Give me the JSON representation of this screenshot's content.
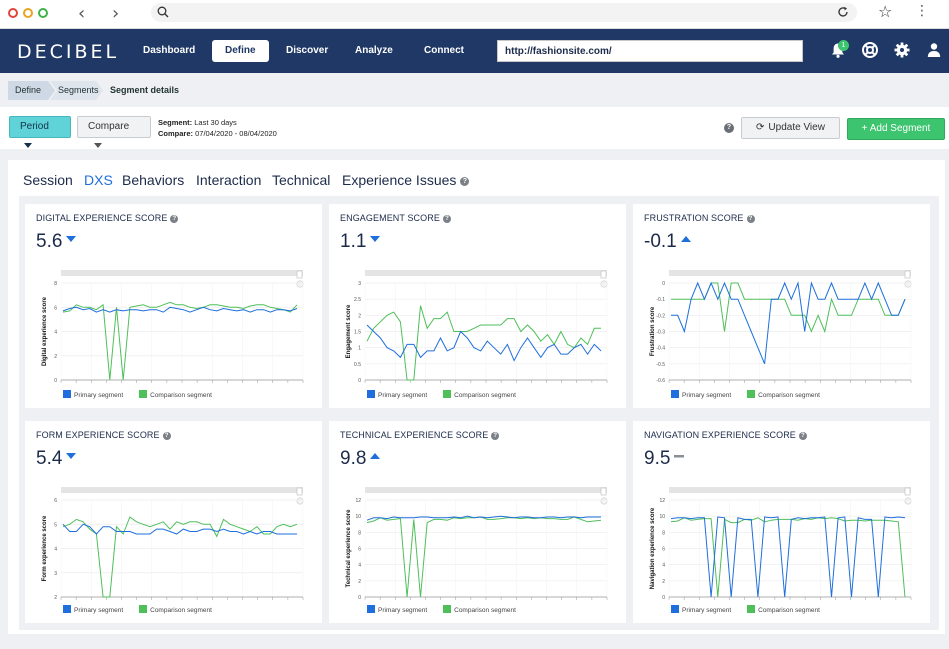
{
  "browser": {
    "colors": {
      "close": "#e0463a",
      "minimize": "#e8a524",
      "maximize": "#3fb24a"
    }
  },
  "app": {
    "logo": "DECIBEL",
    "nav": [
      "Dashboard",
      "Define",
      "Discover",
      "Analyze",
      "Connect"
    ],
    "active_nav": "Define",
    "site_url": "http://fashionsite.com/",
    "notification_count": "1",
    "colors": {
      "nav_bg": "#1f3866",
      "accent_blue": "#1e6fdc",
      "green": "#3cc46e",
      "teal": "#5fd3d8"
    }
  },
  "breadcrumb": [
    "Define",
    "Segments",
    "Segment details"
  ],
  "toolbar": {
    "period_label": "Period",
    "compare_label": "Compare",
    "segment_key": "Segment:",
    "segment_value": "Last 30 days",
    "compare_key": "Compare:",
    "compare_value": "07/04/2020 - 08/04/2020",
    "update_label": "Update View",
    "add_label": "+ Add Segment"
  },
  "tabs": [
    "Session",
    "DXS",
    "Behaviors",
    "Interaction",
    "Technical",
    "Experience Issues"
  ],
  "active_tab": "DXS",
  "legend": {
    "primary": "Primary segment",
    "comparison": "Comparison segment"
  },
  "cards": [
    {
      "title": "DIGITAL EXPERIENCE SCORE",
      "score": "5.6",
      "trend": "down",
      "chart_data": {
        "type": "line",
        "ylabel": "Digital experience score",
        "ylim": [
          0,
          8
        ],
        "yticks": [
          "0",
          "2",
          "4",
          "6",
          "8"
        ],
        "series": [
          {
            "name": "Primary segment",
            "values": [
              5.7,
              5.9,
              6.0,
              5.8,
              5.9,
              5.6,
              5.8,
              5.6,
              5.8,
              5.7,
              5.8,
              5.8,
              5.7,
              5.8,
              5.8,
              5.6,
              6.0,
              5.9,
              5.8,
              5.6,
              5.8,
              6.0,
              5.8,
              5.7,
              5.9,
              5.8,
              5.7,
              5.8,
              5.6,
              5.8,
              5.8,
              5.6,
              5.8,
              5.8,
              5.7,
              5.9
            ]
          },
          {
            "name": "Comparison segment",
            "values": [
              5.6,
              5.7,
              6.2,
              6.0,
              6.0,
              5.8,
              6.2,
              0,
              6.0,
              0,
              6.0,
              6.1,
              6.2,
              6.0,
              6.0,
              6.2,
              6.4,
              6.2,
              6.2,
              6.0,
              5.9,
              6.0,
              6.2,
              6.2,
              6.1,
              6.0,
              6.0,
              5.9,
              6.1,
              6.2,
              6.2,
              6.0,
              5.9,
              5.8,
              5.6,
              6.2
            ]
          }
        ]
      }
    },
    {
      "title": "ENGAGEMENT SCORE",
      "score": "1.1",
      "trend": "down",
      "chart_data": {
        "type": "line",
        "ylabel": "Engagement score",
        "ylim": [
          0,
          3
        ],
        "yticks": [
          "0",
          "0.5",
          "1",
          "1.5",
          "2",
          "2.5",
          "3"
        ],
        "series": [
          {
            "name": "Primary segment",
            "values": [
              1.7,
              1.5,
              1.3,
              1.0,
              0.9,
              0.7,
              1.1,
              1.1,
              0.7,
              0.9,
              0.9,
              1.3,
              0.9,
              1.0,
              1.5,
              1.3,
              1.0,
              0.9,
              1.2,
              1.0,
              0.8,
              1.1,
              0.6,
              1.0,
              1.3,
              1.0,
              0.7,
              1.0,
              1.1,
              0.8,
              0.8,
              1.0,
              1.1,
              0.8,
              1.1,
              0.9
            ]
          },
          {
            "name": "Comparison segment",
            "values": [
              1.2,
              1.6,
              1.8,
              2.0,
              2.1,
              1.8,
              0,
              0,
              2.3,
              1.6,
              1.9,
              1.9,
              2.1,
              1.5,
              1.5,
              1.5,
              1.6,
              1.7,
              1.7,
              1.7,
              1.7,
              1.9,
              1.9,
              1.5,
              1.7,
              1.5,
              1.2,
              1.4,
              1.1,
              1.5,
              1.1,
              1.0,
              1.3,
              1.1,
              1.6,
              1.6
            ]
          }
        ]
      }
    },
    {
      "title": "FRUSTRATION SCORE",
      "score": "-0.1",
      "trend": "up",
      "chart_data": {
        "type": "line",
        "ylabel": "Frustration score",
        "ylim": [
          -0.6,
          0
        ],
        "yticks": [
          "-0.6",
          "-0.5",
          "-0.4",
          "-0.3",
          "-0.2",
          "-0.1",
          "0"
        ],
        "series": [
          {
            "name": "Primary segment",
            "values": [
              -0.2,
              -0.2,
              -0.3,
              -0.1,
              0,
              -0.1,
              0,
              -0.1,
              0,
              -0.1,
              -0.1,
              -0.2,
              -0.3,
              -0.4,
              -0.5,
              -0.1,
              -0.1,
              0,
              -0.1,
              0,
              -0.3,
              0,
              -0.1,
              -0.1,
              0,
              -0.1,
              -0.1,
              -0.1,
              -0.1,
              0,
              -0.1,
              0,
              -0.1,
              -0.2,
              -0.2,
              -0.1
            ]
          },
          {
            "name": "Comparison segment",
            "values": [
              -0.1,
              -0.1,
              -0.1,
              -0.1,
              -0.1,
              -0.1,
              0,
              0,
              -0.3,
              0,
              0,
              -0.1,
              -0.1,
              -0.1,
              -0.1,
              -0.1,
              -0.1,
              -0.1,
              -0.2,
              -0.2,
              -0.2,
              -0.3,
              -0.2,
              -0.3,
              -0.1,
              -0.2,
              -0.2,
              -0.2,
              -0.1,
              -0.1,
              -0.1,
              -0.1,
              -0.2,
              -0.2,
              -0.2,
              -0.1
            ]
          }
        ]
      }
    },
    {
      "title": "FORM EXPERIENCE SCORE",
      "score": "5.4",
      "trend": "down",
      "chart_data": {
        "type": "line",
        "ylabel": "Form experience score",
        "ylim": [
          2,
          6
        ],
        "yticks": [
          "2",
          "3",
          "4",
          "5",
          "6"
        ],
        "series": [
          {
            "name": "Primary segment",
            "values": [
              5.0,
              4.7,
              4.7,
              5.0,
              4.9,
              4.6,
              4.9,
              4.9,
              4.7,
              4.7,
              4.7,
              4.6,
              4.6,
              4.6,
              4.8,
              4.8,
              4.7,
              4.6,
              4.8,
              4.7,
              4.7,
              4.8,
              4.8,
              4.7,
              4.8,
              4.7,
              4.7,
              4.6,
              4.7,
              4.6,
              4.7,
              4.7,
              4.6,
              4.6,
              4.6,
              4.6
            ]
          },
          {
            "name": "Comparison segment",
            "values": [
              4.9,
              5.0,
              5.2,
              5.1,
              4.8,
              4.6,
              2,
              2,
              4.9,
              4.6,
              5.3,
              5.1,
              5.0,
              4.9,
              5.0,
              5.1,
              4.8,
              5.1,
              5.0,
              5.1,
              5.1,
              5.0,
              5.0,
              4.5,
              5.2,
              5.0,
              4.9,
              4.8,
              4.7,
              4.9,
              4.6,
              4.6,
              4.9,
              5.0,
              4.9,
              5.0
            ]
          }
        ]
      }
    },
    {
      "title": "TECHNICAL EXPERIENCE SCORE",
      "score": "9.8",
      "trend": "up",
      "chart_data": {
        "type": "line",
        "ylabel": "Technical experience score",
        "ylim": [
          0,
          12
        ],
        "yticks": [
          "0",
          "2",
          "4",
          "6",
          "8",
          "10",
          "12"
        ],
        "series": [
          {
            "name": "Primary segment",
            "values": [
              9.5,
              9.8,
              9.8,
              9.7,
              9.9,
              9.8,
              9.8,
              9.8,
              9.9,
              9.9,
              9.8,
              9.8,
              9.8,
              9.9,
              9.8,
              10,
              9.8,
              9.9,
              9.8,
              9.9,
              10,
              9.9,
              9.8,
              9.9,
              9.9,
              9.8,
              9.8,
              9.9,
              9.9,
              9.8,
              9.9,
              9.9,
              9.8,
              9.9,
              9.9,
              9.9
            ]
          },
          {
            "name": "Comparison segment",
            "values": [
              9.2,
              9.4,
              9.8,
              9.5,
              9.6,
              9.7,
              0,
              9.6,
              0,
              9.2,
              9.6,
              9.6,
              9.5,
              9.8,
              9.7,
              9.8,
              9.8,
              9.9,
              9.6,
              9.6,
              9.7,
              9.8,
              9.8,
              9.7,
              9.8,
              9.7,
              9.8,
              9.7,
              9.7,
              9.6,
              9.6,
              9.9,
              9.6,
              9.3,
              9.4,
              9.5
            ]
          }
        ]
      }
    },
    {
      "title": "NAVIGATION EXPERIENCE SCORE",
      "score": "9.5",
      "trend": "flat",
      "chart_data": {
        "type": "line",
        "ylabel": "Navigation experience score",
        "ylim": [
          0,
          12
        ],
        "yticks": [
          "0",
          "2",
          "4",
          "6",
          "8",
          "10",
          "12"
        ],
        "series": [
          {
            "name": "Primary segment",
            "values": [
              9.7,
              9.8,
              9.8,
              9.7,
              9.8,
              9.8,
              0,
              9.9,
              9.8,
              0,
              9.8,
              9.6,
              9.6,
              0,
              9.9,
              9.8,
              9.9,
              0,
              9.6,
              9.8,
              9.7,
              9.8,
              9.8,
              9.9,
              0,
              9.8,
              9.9,
              0,
              9.8,
              9.6,
              9.6,
              0,
              9.9,
              9.8,
              9.9,
              9.8
            ]
          },
          {
            "name": "Comparison segment",
            "values": [
              9.3,
              9.4,
              9.8,
              9.5,
              9.6,
              9.7,
              9.7,
              0,
              9.6,
              9.2,
              9.2,
              9.6,
              9.5,
              9.8,
              9.3,
              9.5,
              9.6,
              9.6,
              9.6,
              9.5,
              9.7,
              9.6,
              9.8,
              9.7,
              9.8,
              9.7,
              9.4,
              9.5,
              9.5,
              9.4,
              9.5,
              9.5,
              9.5,
              9.4,
              9.3,
              0
            ]
          }
        ]
      }
    }
  ]
}
